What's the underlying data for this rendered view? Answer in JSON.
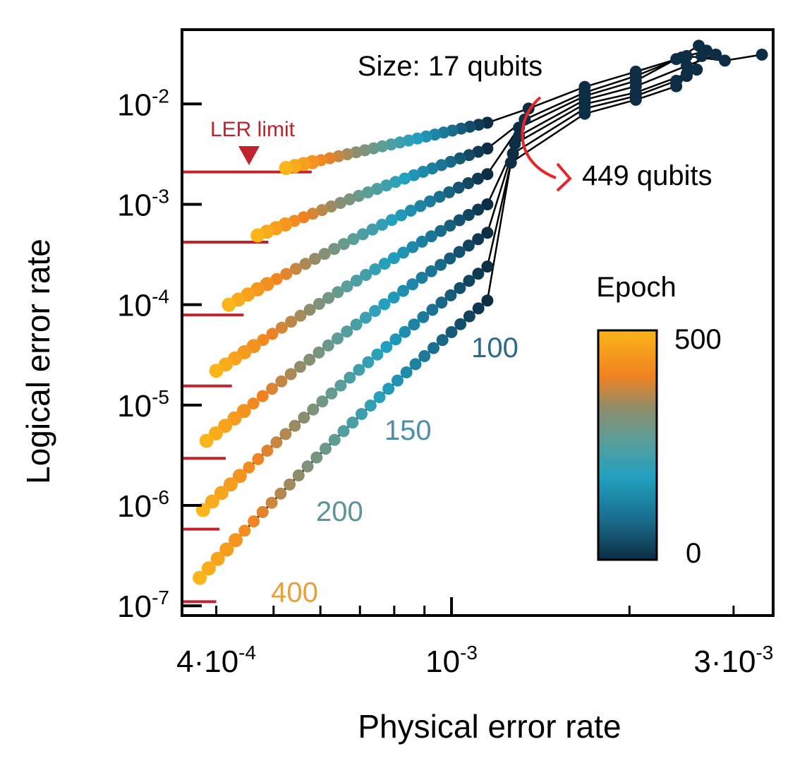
{
  "chart_data": {
    "type": "scatter",
    "xlabel": "Physical error rate",
    "ylabel": "Logical error rate",
    "x_scale": "log",
    "y_scale": "log",
    "xlim": [
      0.00035,
      0.0035
    ],
    "ylim": [
      8e-08,
      0.055
    ],
    "x_ticks": [
      {
        "value": 0.0004,
        "base": "4·10",
        "exp": "-4"
      },
      {
        "value": 0.001,
        "base": "10",
        "exp": "-3"
      },
      {
        "value": 0.003,
        "base": "3·10",
        "exp": "-3"
      }
    ],
    "y_ticks": [
      {
        "value": 0.01,
        "base": "10",
        "exp": "-2"
      },
      {
        "value": 0.001,
        "base": "10",
        "exp": "-3"
      },
      {
        "value": 0.0001,
        "base": "10",
        "exp": "-4"
      },
      {
        "value": 1e-05,
        "base": "10",
        "exp": "-5"
      },
      {
        "value": 1e-06,
        "base": "10",
        "exp": "-6"
      },
      {
        "value": 1e-07,
        "base": "10",
        "exp": "-7"
      }
    ],
    "grid": false,
    "colorbar": {
      "title": "Epoch",
      "min": 0,
      "max": 500,
      "min_label": "0",
      "max_label": "500",
      "colors": [
        "#0c2d44",
        "#1a6e8e",
        "#22a0c0",
        "#5a9e99",
        "#8e8d6b",
        "#f08222",
        "#fbb41a"
      ]
    },
    "annotations": {
      "size_small": "Size: 17 qubits",
      "size_large": "449 qubits",
      "ler_limit": "LER limit",
      "epoch_labels": [
        {
          "text": "100",
          "color": "#2b6a8a",
          "x": 0.00108,
          "y": 3e-05
        },
        {
          "text": "150",
          "color": "#4c8fab",
          "x": 0.00077,
          "y": 4.5e-06
        },
        {
          "text": "200",
          "color": "#5e9494",
          "x": 0.00059,
          "y": 7e-07
        },
        {
          "text": "400",
          "color": "#e8a03c",
          "x": 0.000495,
          "y": 1.1e-07
        }
      ]
    },
    "ler_limits": [
      {
        "y": 0.0021,
        "x_start": 0.00035,
        "x_end": 0.00058
      },
      {
        "y": 0.00042,
        "x_start": 0.00035,
        "x_end": 0.00049
      },
      {
        "y": 7.9e-05,
        "x_start": 0.00035,
        "x_end": 0.000445
      },
      {
        "y": 1.55e-05,
        "x_start": 0.00035,
        "x_end": 0.000425
      },
      {
        "y": 2.95e-06,
        "x_start": 0.00035,
        "x_end": 0.000415
      },
      {
        "y": 5.8e-07,
        "x_start": 0.00035,
        "x_end": 0.000405
      },
      {
        "y": 1.1e-07,
        "x_start": 0.00035,
        "x_end": 0.0004
      }
    ],
    "series": [
      {
        "x_start": 0.000525,
        "y_start": 0.0023,
        "x_end": 0.00115,
        "y_end": 0.0065,
        "n": 24,
        "conv_x": 0.00135,
        "conv_y": 0.009,
        "tail": [
          [
            0.00168,
            0.0148
          ],
          [
            0.00205,
            0.021
          ],
          [
            0.0025,
            0.03
          ],
          [
            0.0029,
            0.027
          ],
          [
            0.00335,
            0.031
          ]
        ]
      },
      {
        "x_start": 0.00047,
        "y_start": 0.00049,
        "x_end": 0.00115,
        "y_end": 0.0036,
        "n": 26,
        "conv_x": 0.00133,
        "conv_y": 0.007,
        "tail": [
          [
            0.00168,
            0.013
          ],
          [
            0.00205,
            0.019
          ],
          [
            0.00245,
            0.029
          ],
          [
            0.0027,
            0.034
          ]
        ]
      },
      {
        "x_start": 0.00042,
        "y_start": 0.0001,
        "x_end": 0.00115,
        "y_end": 0.002,
        "n": 28,
        "conv_x": 0.0013,
        "conv_y": 0.0058,
        "tail": [
          [
            0.00168,
            0.012
          ],
          [
            0.00205,
            0.017
          ],
          [
            0.0024,
            0.028
          ],
          [
            0.00262,
            0.038
          ]
        ]
      },
      {
        "x_start": 0.0004,
        "y_start": 2.2e-05,
        "x_end": 0.00115,
        "y_end": 0.001,
        "n": 30,
        "conv_x": 0.0013,
        "conv_y": 0.0048,
        "tail": [
          [
            0.00168,
            0.011
          ],
          [
            0.00205,
            0.015
          ],
          [
            0.0025,
            0.024
          ],
          [
            0.0028,
            0.031
          ]
        ]
      },
      {
        "x_start": 0.000385,
        "y_start": 4.4e-06,
        "x_end": 0.00115,
        "y_end": 0.00052,
        "n": 31,
        "conv_x": 0.00128,
        "conv_y": 0.004,
        "tail": [
          [
            0.00168,
            0.01
          ],
          [
            0.00205,
            0.013
          ],
          [
            0.0025,
            0.02
          ],
          [
            0.00265,
            0.03
          ]
        ]
      },
      {
        "x_start": 0.00038,
        "y_start": 9e-07,
        "x_end": 0.00115,
        "y_end": 0.00024,
        "n": 32,
        "conv_x": 0.00127,
        "conv_y": 0.0032,
        "tail": [
          [
            0.00168,
            0.009
          ],
          [
            0.00205,
            0.012
          ],
          [
            0.0024,
            0.017
          ],
          [
            0.0026,
            0.022
          ]
        ]
      },
      {
        "x_start": 0.000375,
        "y_start": 1.9e-07,
        "x_end": 0.00115,
        "y_end": 0.00011,
        "n": 33,
        "conv_x": 0.00126,
        "conv_y": 0.0026,
        "tail": [
          [
            0.00168,
            0.008
          ],
          [
            0.00205,
            0.011
          ],
          [
            0.0024,
            0.015
          ],
          [
            0.0025,
            0.019
          ]
        ]
      }
    ]
  }
}
